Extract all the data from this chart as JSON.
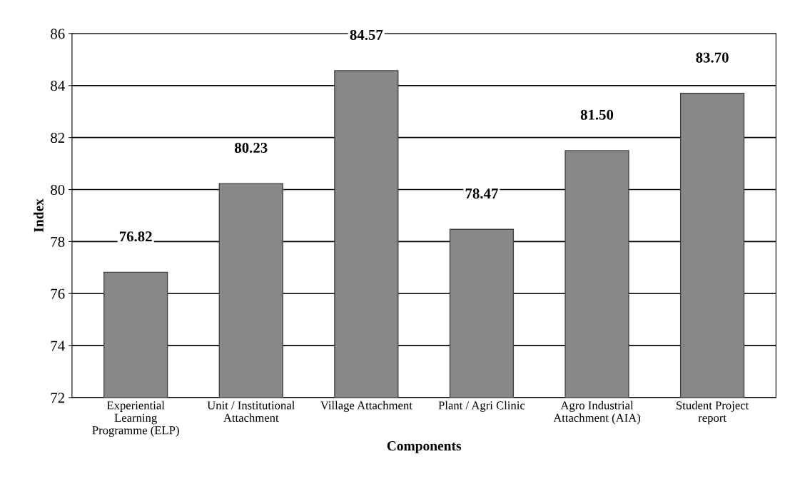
{
  "chart_data": {
    "type": "bar",
    "categories": [
      "Experiential\nLearning\nProgramme (ELP)",
      "Unit / Institutional\nAttachment",
      "Village Attachment",
      "Plant / Agri Clinic",
      "Agro Industrial\nAttachment (AIA)",
      "Student Project\nreport"
    ],
    "values": [
      76.82,
      80.23,
      84.57,
      78.47,
      81.5,
      83.7
    ],
    "value_labels": [
      "76.82",
      "80.23",
      "84.57",
      "78.47",
      "81.50",
      "83.70"
    ],
    "color": "#888888",
    "xlabel": "Components",
    "ylabel": "Index",
    "ylim": [
      72,
      86
    ],
    "yticks": [
      72,
      74,
      76,
      78,
      80,
      82,
      84,
      86
    ],
    "grid": "y"
  }
}
